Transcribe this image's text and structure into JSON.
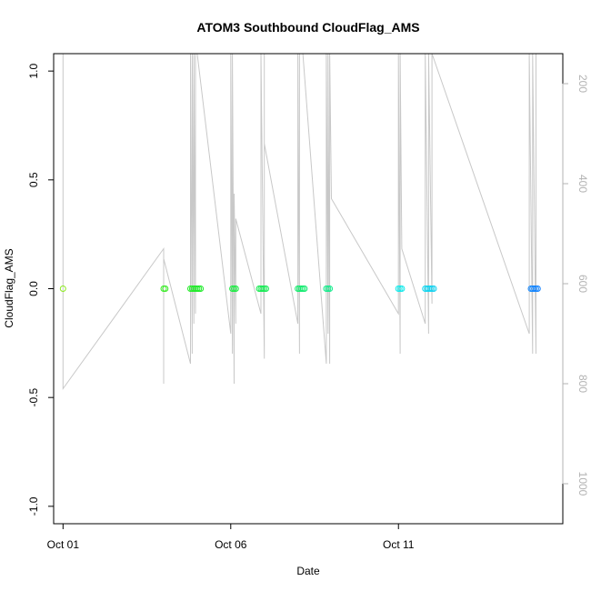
{
  "chart_data": {
    "type": "scatter",
    "title": "ATOM3 Southbound CloudFlag_AMS",
    "xlabel": "Date",
    "ylabel": "CloudFlag_AMS",
    "x_ticks": [
      "Oct 01",
      "Oct 06",
      "Oct 11"
    ],
    "x_tick_days": [
      1,
      6,
      11
    ],
    "xlim": [
      0.72,
      15.9
    ],
    "ylim": [
      -1.08,
      1.08
    ],
    "y_ticks": [
      "-1.0",
      "-0.5",
      "0.0",
      "0.5",
      "1.0"
    ],
    "y_tick_values": [
      -1.0,
      -0.5,
      0.0,
      0.5,
      1.0
    ],
    "right_axis": {
      "label": "",
      "ticks": [
        "200",
        "400",
        "600",
        "800",
        "1000"
      ],
      "tick_values": [
        200,
        400,
        600,
        800,
        1000
      ],
      "lim": [
        1080,
        140
      ],
      "color": "#b3b3b3",
      "orientation": "reversed"
    },
    "grid": false,
    "series": [
      {
        "role": "points",
        "marker": "open-circle",
        "color_scale": "time (green to blue)",
        "points": [
          {
            "day": 1.0,
            "y": 0.0
          },
          {
            "day": 4.0,
            "y": 0.0
          },
          {
            "day": 4.05,
            "y": 0.0
          },
          {
            "day": 4.8,
            "y": 0.0
          },
          {
            "day": 4.85,
            "y": 0.0
          },
          {
            "day": 4.9,
            "y": 0.0
          },
          {
            "day": 4.95,
            "y": 0.0
          },
          {
            "day": 5.0,
            "y": 0.0
          },
          {
            "day": 5.05,
            "y": 0.0
          },
          {
            "day": 5.1,
            "y": 0.0
          },
          {
            "day": 6.05,
            "y": 0.0
          },
          {
            "day": 6.1,
            "y": 0.0
          },
          {
            "day": 6.15,
            "y": 0.0
          },
          {
            "day": 6.85,
            "y": 0.0
          },
          {
            "day": 6.9,
            "y": 0.0
          },
          {
            "day": 6.95,
            "y": 0.0
          },
          {
            "day": 7.0,
            "y": 0.0
          },
          {
            "day": 7.05,
            "y": 0.0
          },
          {
            "day": 8.0,
            "y": 0.0
          },
          {
            "day": 8.05,
            "y": 0.0
          },
          {
            "day": 8.1,
            "y": 0.0
          },
          {
            "day": 8.15,
            "y": 0.0
          },
          {
            "day": 8.2,
            "y": 0.0
          },
          {
            "day": 8.85,
            "y": 0.0
          },
          {
            "day": 8.9,
            "y": 0.0
          },
          {
            "day": 8.95,
            "y": 0.0
          },
          {
            "day": 11.0,
            "y": 0.0
          },
          {
            "day": 11.05,
            "y": 0.0
          },
          {
            "day": 11.1,
            "y": 0.0
          },
          {
            "day": 11.8,
            "y": 0.0
          },
          {
            "day": 11.85,
            "y": 0.0
          },
          {
            "day": 11.9,
            "y": 0.0
          },
          {
            "day": 11.95,
            "y": 0.0
          },
          {
            "day": 12.0,
            "y": 0.0
          },
          {
            "day": 12.05,
            "y": 0.0
          },
          {
            "day": 14.95,
            "y": 0.0
          },
          {
            "day": 15.0,
            "y": 0.0
          },
          {
            "day": 15.05,
            "y": 0.0
          },
          {
            "day": 15.1,
            "y": 0.0
          },
          {
            "day": 15.15,
            "y": 0.0
          }
        ]
      },
      {
        "role": "pressure-track",
        "axis": "right",
        "color": "#c8c8c8",
        "points": [
          [
            1.0,
            140
          ],
          [
            1.0,
            810
          ],
          [
            4.0,
            530
          ],
          [
            4.0,
            610
          ],
          [
            4.0,
            800
          ],
          [
            4.0,
            550
          ],
          [
            4.8,
            760
          ],
          [
            4.8,
            140
          ],
          [
            4.85,
            740
          ],
          [
            4.85,
            140
          ],
          [
            4.9,
            680
          ],
          [
            4.9,
            140
          ],
          [
            4.95,
            660
          ],
          [
            4.95,
            140
          ],
          [
            5.0,
            140
          ],
          [
            6.0,
            700
          ],
          [
            6.0,
            140
          ],
          [
            6.05,
            740
          ],
          [
            6.05,
            140
          ],
          [
            6.1,
            800
          ],
          [
            6.1,
            420
          ],
          [
            6.15,
            680
          ],
          [
            6.15,
            470
          ],
          [
            6.9,
            660
          ],
          [
            6.9,
            140
          ],
          [
            7.0,
            750
          ],
          [
            7.0,
            140
          ],
          [
            7.0,
            320
          ],
          [
            8.0,
            680
          ],
          [
            8.0,
            140
          ],
          [
            8.05,
            740
          ],
          [
            8.05,
            140
          ],
          [
            8.15,
            140
          ],
          [
            8.85,
            760
          ],
          [
            8.85,
            140
          ],
          [
            8.9,
            700
          ],
          [
            8.9,
            140
          ],
          [
            8.95,
            760
          ],
          [
            8.95,
            140
          ],
          [
            9.0,
            430
          ],
          [
            11.0,
            660
          ],
          [
            11.0,
            140
          ],
          [
            11.05,
            740
          ],
          [
            11.05,
            140
          ],
          [
            11.1,
            530
          ],
          [
            11.8,
            680
          ],
          [
            11.8,
            140
          ],
          [
            11.9,
            700
          ],
          [
            11.9,
            140
          ],
          [
            12.0,
            640
          ],
          [
            12.0,
            140
          ],
          [
            14.9,
            700
          ],
          [
            14.9,
            140
          ],
          [
            15.0,
            740
          ],
          [
            15.0,
            140
          ],
          [
            15.1,
            740
          ],
          [
            15.1,
            140
          ]
        ]
      }
    ]
  }
}
